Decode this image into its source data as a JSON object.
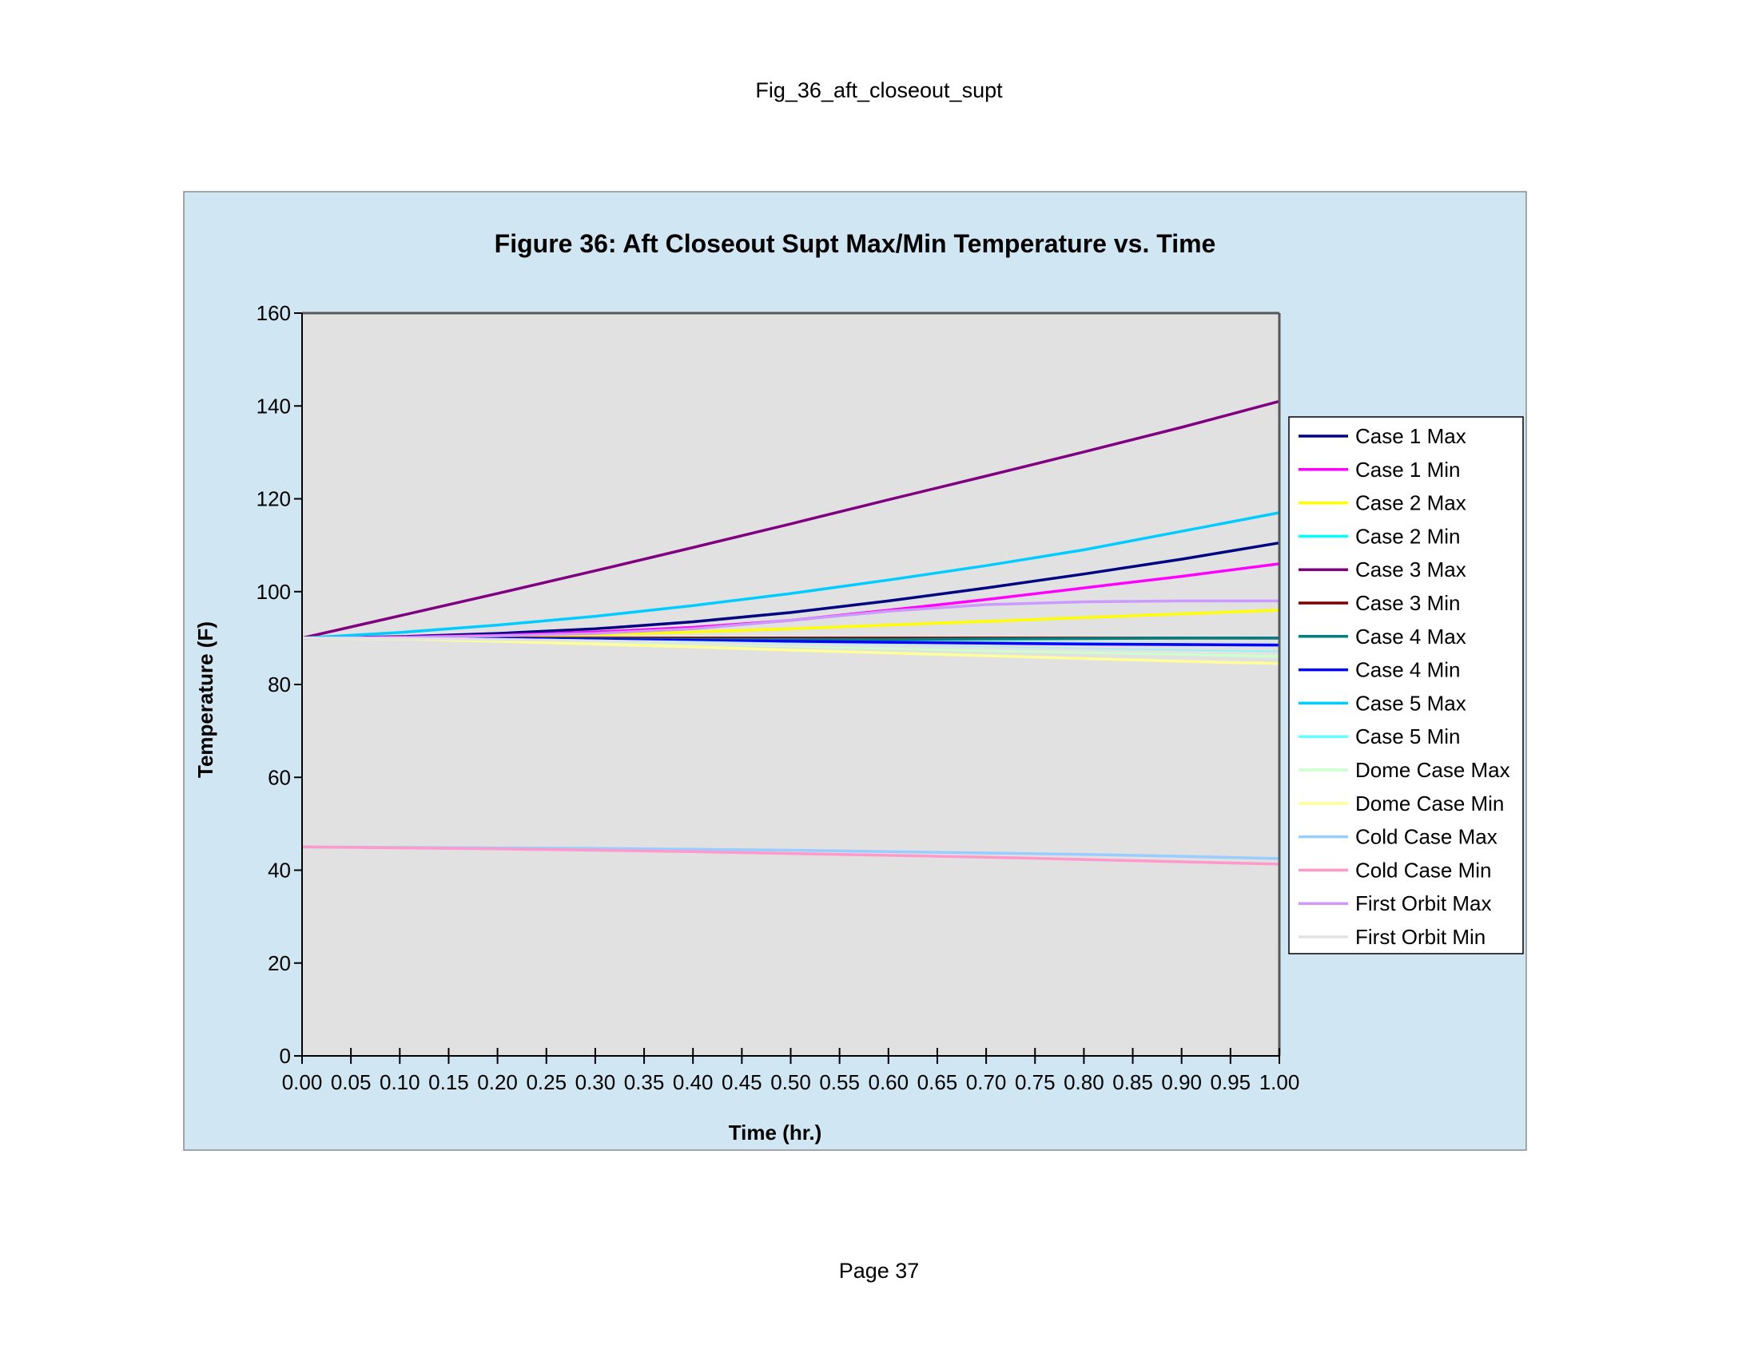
{
  "page": {
    "header": "Fig_36_aft_closeout_supt",
    "footer": "Page 37"
  },
  "colors": {
    "chart_area_bg": "#d1e6f3",
    "plot_area_bg": "#e1e1e1",
    "axis_color": "#595959"
  },
  "chart_data": {
    "type": "line",
    "title": "Figure 36: Aft Closeout Supt Max/Min Temperature vs. Time",
    "xlabel": "Time (hr.)",
    "ylabel": "Temperature (F)",
    "xlim": [
      0,
      1
    ],
    "ylim": [
      0,
      160
    ],
    "x_ticks": [
      "0.00",
      "0.05",
      "0.10",
      "0.15",
      "0.20",
      "0.25",
      "0.30",
      "0.35",
      "0.40",
      "0.45",
      "0.50",
      "0.55",
      "0.60",
      "0.65",
      "0.70",
      "0.75",
      "0.80",
      "0.85",
      "0.90",
      "0.95",
      "1.00"
    ],
    "y_ticks": [
      "0",
      "20",
      "40",
      "60",
      "80",
      "100",
      "120",
      "140",
      "160"
    ],
    "grid": false,
    "legend_position": "right",
    "x": [
      0,
      0.1,
      0.2,
      0.3,
      0.4,
      0.5,
      0.6,
      0.7,
      0.8,
      0.9,
      1.0
    ],
    "series": [
      {
        "name": "Case 1 Max",
        "color": "#000080",
        "values": [
          90,
          90.3,
          91,
          92,
          93.5,
          95.5,
          98,
          100.8,
          103.8,
          107,
          110.5
        ]
      },
      {
        "name": "Case 1 Min",
        "color": "#ff00ff",
        "values": [
          90,
          90.2,
          90.6,
          91.3,
          92.3,
          93.8,
          96,
          98.3,
          100.8,
          103.3,
          106
        ]
      },
      {
        "name": "Case 2 Max",
        "color": "#ffff00",
        "values": [
          90,
          90,
          90.3,
          90.7,
          91.3,
          92,
          92.8,
          93.6,
          94.4,
          95.2,
          96
        ]
      },
      {
        "name": "Case 2 Min",
        "color": "#00ffff",
        "values": [
          90,
          90,
          90,
          89.8,
          89.6,
          89.4,
          89.2,
          89,
          88.8,
          88.6,
          88.5
        ]
      },
      {
        "name": "Case 3 Max",
        "color": "#800080",
        "values": [
          90,
          94.8,
          99.6,
          104.5,
          109.5,
          114.6,
          119.8,
          124.9,
          130.1,
          135.4,
          141
        ]
      },
      {
        "name": "Case 3 Min",
        "color": "#800000",
        "values": [
          90,
          90,
          90,
          90,
          90,
          90,
          90,
          90,
          90,
          90,
          90
        ]
      },
      {
        "name": "Case 4 Max",
        "color": "#008080",
        "values": [
          90,
          90,
          89.9,
          89.8,
          89.7,
          89.7,
          89.7,
          89.8,
          89.9,
          90,
          90
        ]
      },
      {
        "name": "Case 4 Min",
        "color": "#0000ff",
        "values": [
          90,
          90,
          89.9,
          89.7,
          89.5,
          89.3,
          89.1,
          88.9,
          88.7,
          88.6,
          88.5
        ]
      },
      {
        "name": "Case 5 Max",
        "color": "#00ccff",
        "values": [
          90,
          91.2,
          92.8,
          94.7,
          97,
          99.6,
          102.5,
          105.6,
          109,
          113,
          117
        ]
      },
      {
        "name": "Case 5 Min",
        "color": "#66ffff",
        "values": [
          90,
          89.9,
          89.7,
          89.4,
          89.1,
          88.7,
          88.3,
          87.9,
          87.5,
          87.2,
          86.9
        ]
      },
      {
        "name": "Dome Case Max",
        "color": "#ccffcc",
        "values": [
          90,
          89.9,
          89.6,
          89.2,
          88.8,
          88.3,
          87.8,
          87.3,
          86.9,
          86.5,
          86
        ]
      },
      {
        "name": "Dome Case Min",
        "color": "#ffff99",
        "values": [
          90,
          89.8,
          89.3,
          88.7,
          88.1,
          87.4,
          86.8,
          86.2,
          85.6,
          85,
          84.5
        ]
      },
      {
        "name": "Cold Case Max",
        "color": "#99ccff",
        "values": [
          45,
          44.9,
          44.8,
          44.7,
          44.5,
          44.3,
          44,
          43.7,
          43.4,
          43,
          42.5
        ]
      },
      {
        "name": "Cold Case Min",
        "color": "#ff99cc",
        "values": [
          45,
          44.8,
          44.6,
          44.3,
          44,
          43.6,
          43.2,
          42.8,
          42.3,
          41.8,
          41.3
        ]
      },
      {
        "name": "First Orbit Max",
        "color": "#cc99ff",
        "values": [
          90,
          90.1,
          90.5,
          91,
          92,
          93.8,
          95.8,
          97.2,
          97.8,
          98,
          98
        ]
      },
      {
        "name": "First Orbit Min",
        "color": "#e3e3e3",
        "values": [
          90,
          89.9,
          89.7,
          89.4,
          89,
          88.6,
          88.2,
          87.8,
          87.4,
          87,
          86.7
        ]
      }
    ]
  }
}
